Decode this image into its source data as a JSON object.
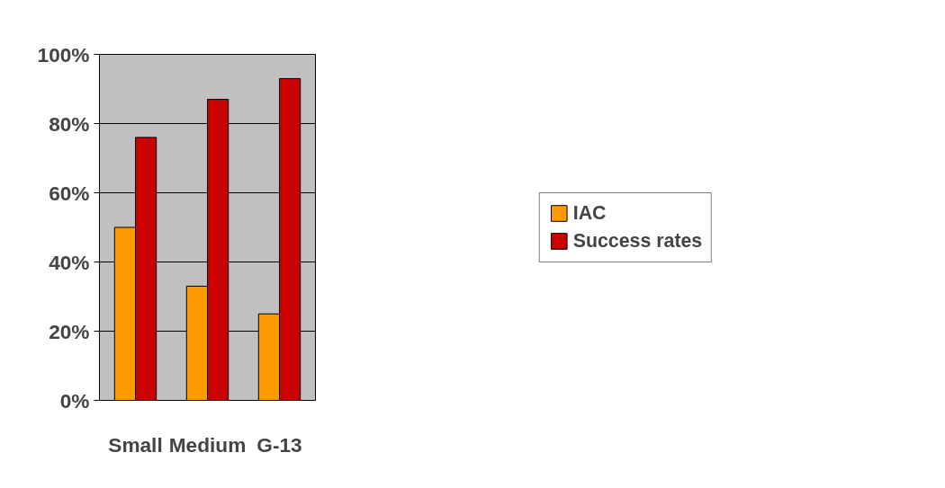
{
  "chart_data": {
    "type": "bar",
    "categories": [
      "Small",
      "Medium",
      "G-13"
    ],
    "series": [
      {
        "name": "IAC",
        "color": "#ff9900",
        "values": [
          50,
          33,
          25
        ]
      },
      {
        "name": "Success rates",
        "color": "#cc0000",
        "values": [
          76,
          87,
          93
        ]
      }
    ],
    "ylim": [
      0,
      100
    ],
    "yticks": [
      {
        "value": 0,
        "label": "0%"
      },
      {
        "value": 20,
        "label": "20%"
      },
      {
        "value": 40,
        "label": "40%"
      },
      {
        "value": 60,
        "label": "60%"
      },
      {
        "value": 80,
        "label": "80%"
      },
      {
        "value": 100,
        "label": "100%"
      }
    ],
    "grid": "y",
    "legend": "right"
  }
}
